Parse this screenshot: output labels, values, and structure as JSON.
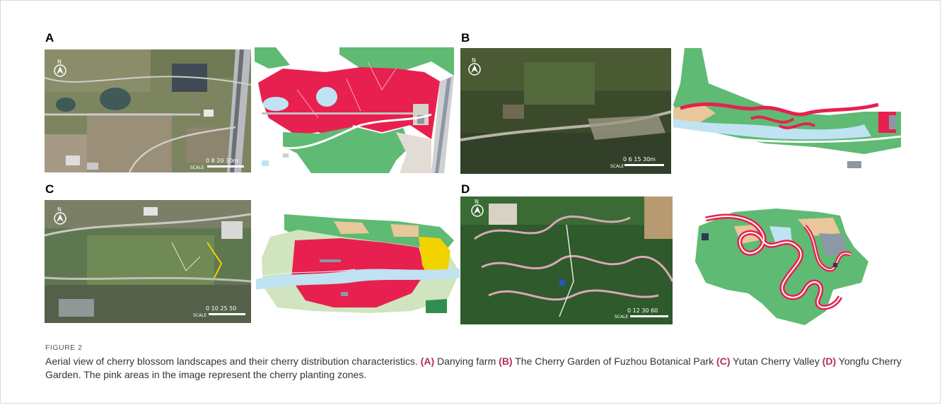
{
  "figure": {
    "label": "FIGURE 2",
    "panels": [
      {
        "letter": "A",
        "scale_text": "0  8  20  30m",
        "scale_word": "SCALE"
      },
      {
        "letter": "B",
        "scale_text": "0  6  15  30m",
        "scale_word": "SCALE"
      },
      {
        "letter": "C",
        "scale_text": "0  10  25  50",
        "scale_word": "SCALE"
      },
      {
        "letter": "D",
        "scale_text": "0  12  30  60",
        "scale_word": "SCALE"
      }
    ],
    "caption": {
      "intro": "Aerial view of cherry blossom landscapes and their cherry distribution characteristics.",
      "a_tag": "(A)",
      "a_text": "Danying farm",
      "b_tag": "(B)",
      "b_text": "The Cherry Garden of Fuzhou Botanical Park",
      "c_tag": "(C)",
      "c_text": "Yutan Cherry Valley",
      "d_tag": "(D)",
      "d_text": "Yongfu Cherry Garden.",
      "outro": "The pink areas in the image represent the cherry planting zones."
    },
    "colors": {
      "cherry": "#e8204f",
      "green": "#5fba73",
      "light_green": "#cfe4bf",
      "water": "#bfe3f2",
      "sand": "#e8c79a",
      "yellow": "#f2d300",
      "gray": "#8c98a3"
    },
    "north_symbol": "N"
  }
}
